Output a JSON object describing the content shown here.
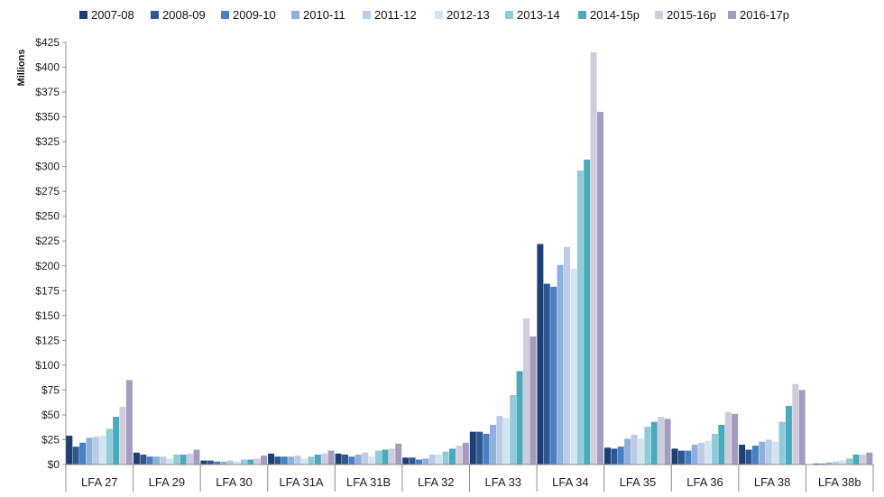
{
  "chart_data": {
    "type": "bar",
    "ylabel": "Millions",
    "ylim": [
      0,
      425
    ],
    "y_ticks": [
      "$0",
      "$25",
      "$50",
      "$75",
      "$100",
      "$125",
      "$150",
      "$175",
      "$200",
      "$225",
      "$250",
      "$275",
      "$300",
      "$325",
      "$350",
      "$375",
      "$400",
      "$425"
    ],
    "grid": false,
    "legend_position": "top",
    "categories": [
      "LFA 27",
      "LFA 29",
      "LFA 30",
      "LFA 31A",
      "LFA 31B",
      "LFA 32",
      "LFA 33",
      "LFA 34",
      "LFA 35",
      "LFA 36",
      "LFA 38",
      "LFA 38b"
    ],
    "series": [
      {
        "name": "2007-08",
        "color": "#1f3f73",
        "values": [
          29,
          12,
          4,
          11,
          11,
          7,
          33,
          222,
          17,
          16,
          20,
          0
        ]
      },
      {
        "name": "2008-09",
        "color": "#2e5892",
        "values": [
          18,
          10,
          4,
          8,
          10,
          7,
          33,
          182,
          16,
          14,
          15,
          1
        ]
      },
      {
        "name": "2009-10",
        "color": "#4a7fc4",
        "values": [
          22,
          8,
          3,
          8,
          8,
          5,
          31,
          179,
          18,
          14,
          19,
          1
        ]
      },
      {
        "name": "2010-11",
        "color": "#8fb0dd",
        "values": [
          27,
          8,
          3,
          8,
          10,
          6,
          40,
          201,
          26,
          20,
          23,
          2
        ]
      },
      {
        "name": "2011-12",
        "color": "#bccbe7",
        "values": [
          28,
          8,
          4,
          9,
          12,
          10,
          49,
          219,
          30,
          22,
          25,
          3
        ]
      },
      {
        "name": "2012-13",
        "color": "#d3e5f0",
        "values": [
          29,
          6,
          3,
          6,
          8,
          10,
          47,
          197,
          26,
          24,
          23,
          4
        ]
      },
      {
        "name": "2013-14",
        "color": "#8fcbd8",
        "values": [
          36,
          10,
          5,
          8,
          14,
          13,
          70,
          296,
          38,
          31,
          43,
          6
        ]
      },
      {
        "name": "2014-15p",
        "color": "#4aa9ba",
        "values": [
          48,
          10,
          5,
          10,
          15,
          16,
          94,
          307,
          43,
          40,
          59,
          10
        ]
      },
      {
        "name": "2015-16p",
        "color": "#cfcddc",
        "values": [
          58,
          11,
          6,
          11,
          16,
          19,
          147,
          415,
          48,
          53,
          81,
          10
        ]
      },
      {
        "name": "2016-17p",
        "color": "#a39cbf",
        "values": [
          85,
          15,
          9,
          14,
          21,
          22,
          129,
          355,
          46,
          51,
          75,
          12
        ]
      }
    ]
  }
}
